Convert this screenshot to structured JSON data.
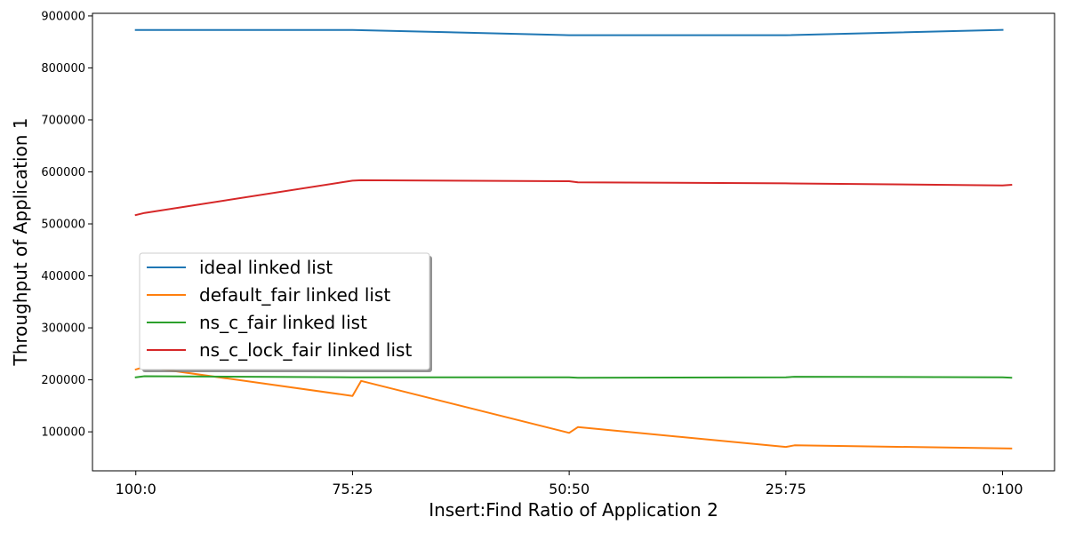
{
  "chart_data": {
    "type": "line",
    "xlabel": "Insert:Find Ratio of Application 2",
    "ylabel": "Throughput of Application 1",
    "x_ticks": [
      {
        "value": 0,
        "label": "100:0"
      },
      {
        "value": 1,
        "label": "75:25"
      },
      {
        "value": 2,
        "label": "50:50"
      },
      {
        "value": 3,
        "label": "25:75"
      },
      {
        "value": 4,
        "label": "0:100"
      }
    ],
    "xlim": [
      -0.2,
      4.24
    ],
    "ylim": [
      25000,
      905000
    ],
    "y_ticks": [
      100000,
      200000,
      300000,
      400000,
      500000,
      600000,
      700000,
      800000,
      900000
    ],
    "grid": false,
    "legend_position": "center-left",
    "series": [
      {
        "name": "ideal linked list",
        "color": "#1f77b4",
        "points": [
          [
            0,
            873000
          ],
          [
            1,
            873000
          ],
          [
            2,
            863000
          ],
          [
            3,
            863000
          ],
          [
            4,
            873000
          ]
        ]
      },
      {
        "name": "default_fair linked list",
        "color": "#ff7f0e",
        "points": [
          [
            0,
            220000
          ],
          [
            0.04,
            225000
          ],
          [
            1,
            169000
          ],
          [
            1.04,
            198000
          ],
          [
            2,
            98000
          ],
          [
            2.04,
            109000
          ],
          [
            3,
            71000
          ],
          [
            3.04,
            74000
          ],
          [
            4.04,
            68000
          ]
        ]
      },
      {
        "name": "ns_c_fair linked list",
        "color": "#2ca02c",
        "points": [
          [
            0,
            205000
          ],
          [
            0.04,
            207000
          ],
          [
            1,
            205000
          ],
          [
            2,
            205000
          ],
          [
            2.04,
            204000
          ],
          [
            3,
            205000
          ],
          [
            3.04,
            206000
          ],
          [
            4,
            205000
          ],
          [
            4.04,
            204000
          ]
        ]
      },
      {
        "name": "ns_c_lock_fair linked list",
        "color": "#d62728",
        "points": [
          [
            0,
            517000
          ],
          [
            0.04,
            521000
          ],
          [
            1,
            583000
          ],
          [
            1.04,
            584000
          ],
          [
            2,
            582000
          ],
          [
            2.04,
            580000
          ],
          [
            3,
            578000
          ],
          [
            4,
            574000
          ],
          [
            4.04,
            575000
          ]
        ]
      }
    ]
  }
}
